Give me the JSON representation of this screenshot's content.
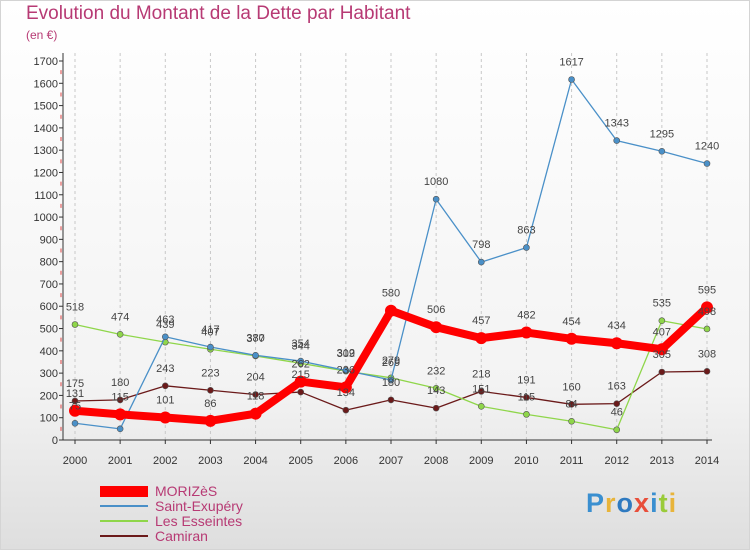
{
  "chart_data": {
    "type": "line",
    "title": "Evolution du Montant de la Dette par Habitant",
    "subtitle": "(en €)",
    "x": [
      "2000",
      "2001",
      "2002",
      "2003",
      "2004",
      "2005",
      "2006",
      "2007",
      "2008",
      "2009",
      "2010",
      "2011",
      "2012",
      "2013",
      "2014"
    ],
    "yticks": [
      "0",
      "100",
      "200",
      "300",
      "400",
      "500",
      "600",
      "700",
      "800",
      "900",
      "1000",
      "1100",
      "1200",
      "1300",
      "1400",
      "1500",
      "1600",
      "1700"
    ],
    "ylim": [
      0,
      1700
    ],
    "grid": "vertical dashed",
    "series": [
      {
        "name": "MORIZèS",
        "color": "#ff0000",
        "values": [
          131,
          115,
          101,
          86,
          118,
          262,
          236,
          580,
          506,
          457,
          482,
          454,
          434,
          407,
          595
        ]
      },
      {
        "name": "Saint-Exupéry",
        "color": "#4a90c8",
        "values": [
          75,
          50,
          463,
          417,
          380,
          354,
          312,
          269,
          1080,
          798,
          863,
          1617,
          1343,
          1295,
          1240
        ]
      },
      {
        "name": "Les Esseintes",
        "color": "#8fd64a",
        "values": [
          518,
          474,
          439,
          407,
          377,
          344,
          309,
          279,
          232,
          151,
          115,
          84,
          46,
          535,
          498
        ]
      },
      {
        "name": "Camiran",
        "color": "#6b1a1a",
        "values": [
          175,
          180,
          243,
          223,
          204,
          215,
          134,
          180,
          143,
          218,
          191,
          160,
          163,
          305,
          308
        ]
      }
    ],
    "labels": [
      [
        "131",
        "115",
        "101",
        "86",
        "118",
        "262",
        "236",
        "580",
        "506",
        "457",
        "482",
        "454",
        "434",
        "407",
        "595"
      ],
      [
        "75",
        "",
        "463",
        "417",
        "380",
        "354",
        "312",
        "269",
        "1080",
        "798",
        "863",
        "1617",
        "1343",
        "1295",
        "1240"
      ],
      [
        "518",
        "474",
        "439",
        "407",
        "377",
        "344",
        "309",
        "279",
        "232",
        "151",
        "115",
        "84",
        "46",
        "535",
        "498"
      ],
      [
        "175",
        "180",
        "243",
        "223",
        "204",
        "215",
        "134",
        "180",
        "143",
        "218",
        "191",
        "160",
        "163",
        "305",
        "308"
      ]
    ]
  },
  "legend": {
    "items": [
      {
        "label": "MORIZèS",
        "color": "#ff0000"
      },
      {
        "label": "Saint-Exupéry",
        "color": "#4a90c8"
      },
      {
        "label": "Les Esseintes",
        "color": "#8fd64a"
      },
      {
        "label": "Camiran",
        "color": "#6b1a1a"
      }
    ]
  },
  "logo": {
    "text": "Proxiti",
    "colors": [
      "#3a8fd0",
      "#e8b43a",
      "#2f7ac0",
      "#e84e3a",
      "#3a8fd0",
      "#9acb3a",
      "#e8b43a"
    ]
  }
}
